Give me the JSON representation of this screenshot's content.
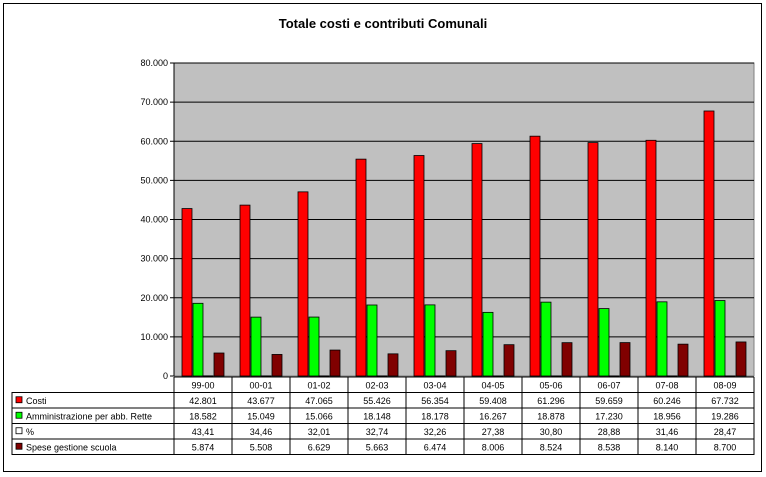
{
  "chart_data": {
    "type": "bar",
    "title": "Totale costi e contributi Comunali",
    "categories": [
      "99-00",
      "00-01",
      "01-02",
      "02-03",
      "03-04",
      "04-05",
      "05-06",
      "06-07",
      "07-08",
      "08-09"
    ],
    "ylim": [
      0,
      80000
    ],
    "yticks": [
      "0",
      "10.000",
      "20.000",
      "30.000",
      "40.000",
      "50.000",
      "60.000",
      "70.000",
      "80.000"
    ],
    "ytick_values": [
      0,
      10000,
      20000,
      30000,
      40000,
      50000,
      60000,
      70000,
      80000
    ],
    "grid": true,
    "legend_placement": "data-table-left",
    "plot_background": "#c0c0c0",
    "series": [
      {
        "name": "Costi",
        "color": "#ff0000",
        "plotted": true,
        "values": [
          42801,
          43677,
          47065,
          55426,
          56354,
          59408,
          61296,
          59659,
          60246,
          67732
        ],
        "labels": [
          "42.801",
          "43.677",
          "47.065",
          "55.426",
          "56.354",
          "59.408",
          "61.296",
          "59.659",
          "60.246",
          "67.732"
        ]
      },
      {
        "name": "Amministrazione per abb. Rette",
        "color": "#00ff00",
        "plotted": true,
        "values": [
          18582,
          15049,
          15066,
          18148,
          18178,
          16267,
          18878,
          17230,
          18956,
          19286
        ],
        "labels": [
          "18.582",
          "15.049",
          "15.066",
          "18.148",
          "18.178",
          "16.267",
          "18.878",
          "17.230",
          "18.956",
          "19.286"
        ]
      },
      {
        "name": "%",
        "color": "#ffffff",
        "plotted": true,
        "values": [
          43.41,
          34.46,
          32.01,
          32.74,
          32.26,
          27.38,
          30.8,
          28.88,
          31.46,
          28.47
        ],
        "labels": [
          "43,41",
          "34,46",
          "32,01",
          "32,74",
          "32,26",
          "27,38",
          "30,80",
          "28,88",
          "31,46",
          "28,47"
        ]
      },
      {
        "name": "Spese gestione scuola",
        "color": "#800000",
        "plotted": true,
        "values": [
          5874,
          5508,
          6629,
          5663,
          6474,
          8006,
          8524,
          8538,
          8140,
          8700
        ],
        "labels": [
          "5.874",
          "5.508",
          "6.629",
          "5.663",
          "6.474",
          "8.006",
          "8.524",
          "8.538",
          "8.140",
          "8.700"
        ]
      }
    ]
  }
}
